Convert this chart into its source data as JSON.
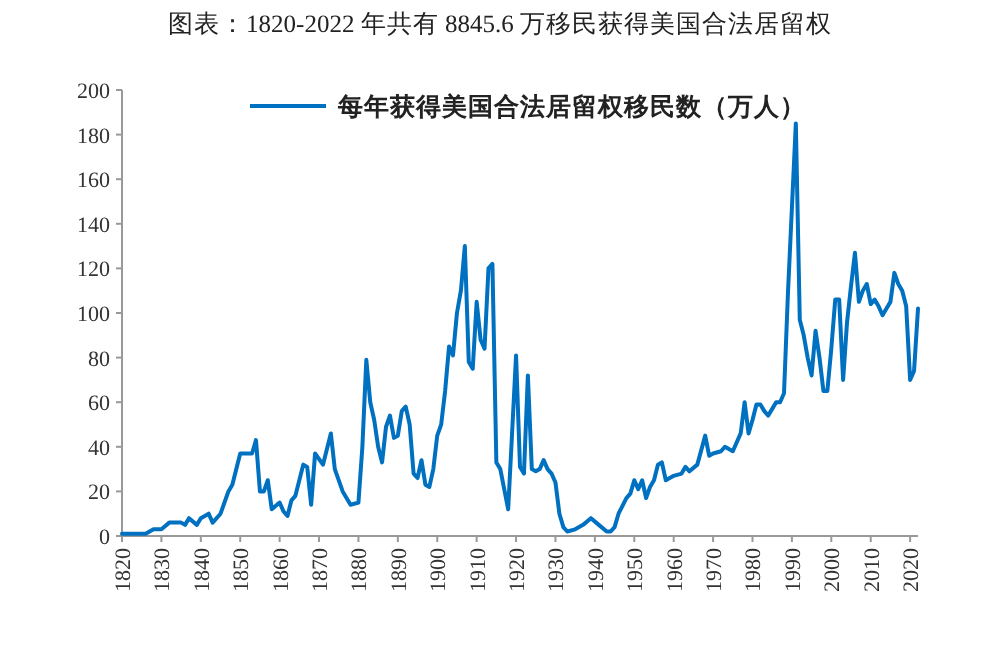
{
  "chart_data": {
    "type": "line",
    "title": "图表：1820-2022 年共有 8845.6 万移民获得美国合法居留权",
    "x": [
      1820,
      1822,
      1824,
      1826,
      1828,
      1830,
      1832,
      1835,
      1836,
      1837,
      1839,
      1840,
      1842,
      1843,
      1845,
      1847,
      1848,
      1850,
      1852,
      1853,
      1854,
      1855,
      1856,
      1857,
      1858,
      1860,
      1861,
      1862,
      1863,
      1864,
      1866,
      1867,
      1868,
      1869,
      1871,
      1873,
      1874,
      1876,
      1878,
      1880,
      1881,
      1882,
      1883,
      1884,
      1885,
      1886,
      1887,
      1888,
      1889,
      1890,
      1891,
      1892,
      1893,
      1894,
      1895,
      1896,
      1897,
      1898,
      1899,
      1900,
      1901,
      1902,
      1903,
      1904,
      1905,
      1906,
      1907,
      1908,
      1909,
      1910,
      1911,
      1912,
      1913,
      1914,
      1915,
      1916,
      1918,
      1920,
      1921,
      1922,
      1923,
      1924,
      1925,
      1926,
      1927,
      1928,
      1929,
      1930,
      1931,
      1932,
      1933,
      1935,
      1937,
      1939,
      1941,
      1943,
      1944,
      1945,
      1946,
      1948,
      1949,
      1950,
      1951,
      1952,
      1953,
      1954,
      1955,
      1956,
      1957,
      1958,
      1959,
      1960,
      1962,
      1963,
      1964,
      1966,
      1968,
      1969,
      1970,
      1972,
      1973,
      1975,
      1977,
      1978,
      1979,
      1980,
      1981,
      1982,
      1983,
      1984,
      1985,
      1986,
      1987,
      1988,
      1989,
      1991,
      1992,
      1993,
      1994,
      1995,
      1996,
      1997,
      1998,
      1999,
      2000,
      2001,
      2002,
      2003,
      2004,
      2005,
      2006,
      2007,
      2008,
      2009,
      2010,
      2011,
      2012,
      2013,
      2014,
      2015,
      2016,
      2017,
      2018,
      2019,
      2020,
      2021,
      2022
    ],
    "series": [
      {
        "name": "每年获得美国合法居留权移民数（万人）",
        "color": "#0070c0",
        "values": [
          1,
          1,
          1,
          1,
          3,
          3,
          6,
          6,
          5,
          8,
          5,
          8,
          10,
          6,
          10,
          20,
          23,
          37,
          37,
          37,
          43,
          20,
          20,
          25,
          12,
          15,
          11,
          9,
          16,
          18,
          32,
          31,
          14,
          37,
          32,
          46,
          30,
          20,
          14,
          15,
          40,
          79,
          60,
          52,
          40,
          33,
          49,
          54,
          44,
          45,
          56,
          58,
          50,
          28,
          26,
          34,
          23,
          22,
          30,
          45,
          50,
          65,
          85,
          81,
          100,
          110,
          130,
          78,
          75,
          105,
          88,
          84,
          120,
          122,
          33,
          30,
          12,
          81,
          31,
          28,
          72,
          30,
          29,
          30,
          34,
          30,
          28,
          24,
          10,
          4,
          2,
          3,
          5,
          8,
          5,
          2,
          2,
          4,
          10,
          17,
          19,
          25,
          21,
          25,
          17,
          22,
          25,
          32,
          33,
          25,
          26,
          27,
          28,
          31,
          29,
          32,
          45,
          36,
          37,
          38,
          40,
          38,
          46,
          60,
          46,
          52,
          59,
          59,
          56,
          54,
          57,
          60,
          60,
          64,
          109,
          185,
          97,
          90,
          80,
          72,
          92,
          80,
          65,
          65,
          84,
          106,
          106,
          70,
          96,
          112,
          127,
          105,
          110,
          113,
          104,
          106,
          103,
          99,
          102,
          105,
          118,
          113,
          110,
          103,
          70,
          74,
          102
        ]
      }
    ],
    "xlim": [
      1820,
      2022
    ],
    "ylim": [
      0,
      200
    ],
    "xticks": [
      1820,
      1830,
      1840,
      1850,
      1860,
      1870,
      1880,
      1890,
      1900,
      1910,
      1920,
      1930,
      1940,
      1950,
      1960,
      1970,
      1980,
      1990,
      2000,
      2010,
      2020
    ],
    "yticks": [
      0,
      20,
      40,
      60,
      80,
      100,
      120,
      140,
      160,
      180,
      200
    ],
    "grid": false,
    "legend": "top",
    "marker": "none",
    "line_style": "solid"
  }
}
